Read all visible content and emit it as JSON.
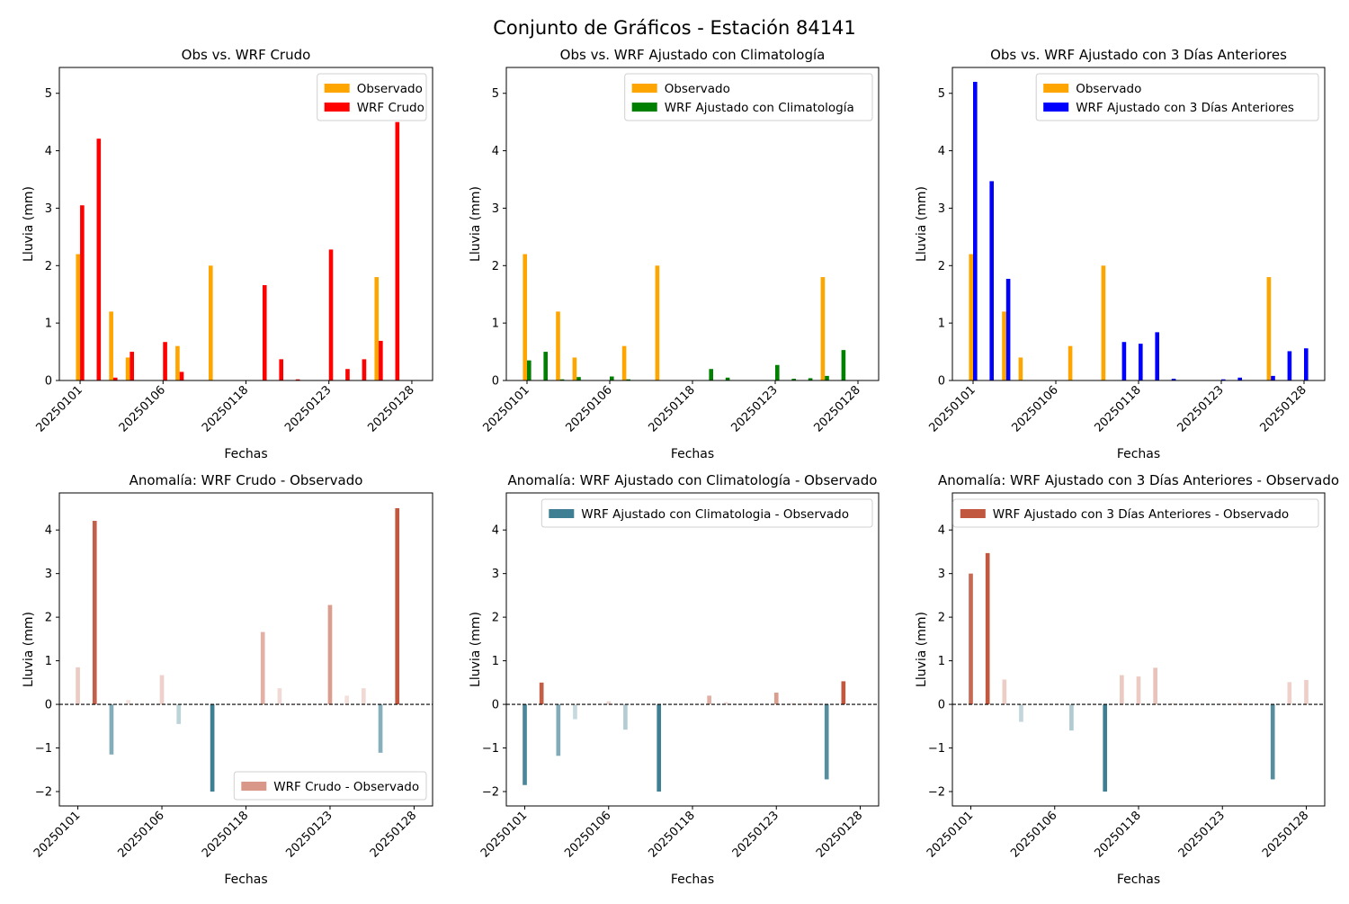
{
  "suptitle": "Conjunto de Gráficos - Estación 84141",
  "colors": {
    "observado": "#ffa500",
    "wrf_crudo": "#ff0000",
    "wrf_clim": "#008000",
    "wrf_3d": "#0000ff",
    "anomaly_positive": "#c0573e",
    "anomaly_negative": "#3f7f93"
  },
  "chart_data": [
    {
      "type": "bar",
      "title": "Obs vs. WRF Crudo",
      "xlabel": "Fechas",
      "ylabel": "Lluvia (mm)",
      "x": [
        0,
        1,
        2,
        3,
        5,
        6,
        8,
        11,
        12,
        13,
        15,
        16,
        17,
        18,
        19,
        20
      ],
      "xticks": [
        0,
        5,
        10,
        15,
        20
      ],
      "xticklabels": [
        "20250101",
        "20250106",
        "20250118",
        "20250123",
        "20250128"
      ],
      "xlim": [
        -1.25,
        21.25
      ],
      "ylim": [
        0,
        5.45
      ],
      "yticks": [
        0,
        1,
        2,
        3,
        4,
        5
      ],
      "legend": "top-right",
      "series": [
        {
          "name": "Observado",
          "color": "#ffa500",
          "values": [
            2.2,
            0.0,
            1.2,
            0.4,
            0.0,
            0.6,
            2.0,
            0.0,
            0.0,
            0.0,
            0.0,
            0.0,
            0.0,
            1.8,
            0.0,
            0.0
          ]
        },
        {
          "name": "WRF Crudo",
          "color": "#ff0000",
          "values": [
            3.05,
            4.21,
            0.05,
            0.5,
            0.67,
            0.15,
            0.0,
            1.66,
            0.37,
            0.02,
            2.28,
            0.2,
            0.37,
            0.69,
            4.5,
            0.0
          ]
        }
      ]
    },
    {
      "type": "bar",
      "title": "Obs vs. WRF Ajustado con Climatología",
      "xlabel": "Fechas",
      "ylabel": "Lluvia (mm)",
      "x": [
        0,
        1,
        2,
        3,
        5,
        6,
        8,
        11,
        12,
        13,
        15,
        16,
        17,
        18,
        19,
        20
      ],
      "xticks": [
        0,
        5,
        10,
        15,
        20
      ],
      "xticklabels": [
        "20250101",
        "20250106",
        "20250118",
        "20250123",
        "20250128"
      ],
      "xlim": [
        -1.25,
        21.25
      ],
      "ylim": [
        0,
        5.45
      ],
      "yticks": [
        0,
        1,
        2,
        3,
        4,
        5
      ],
      "legend": "top-right",
      "series": [
        {
          "name": "Observado",
          "color": "#ffa500",
          "values": [
            2.2,
            0.0,
            1.2,
            0.4,
            0.0,
            0.6,
            2.0,
            0.0,
            0.0,
            0.0,
            0.0,
            0.0,
            0.0,
            1.8,
            0.0,
            0.0
          ]
        },
        {
          "name": "WRF Ajustado con Climatología",
          "color": "#008000",
          "values": [
            0.35,
            0.5,
            0.02,
            0.06,
            0.07,
            0.02,
            0.0,
            0.2,
            0.05,
            0.0,
            0.27,
            0.03,
            0.04,
            0.08,
            0.53,
            0.0
          ]
        }
      ]
    },
    {
      "type": "bar",
      "title": "Obs vs. WRF Ajustado con 3 Días Anteriores",
      "xlabel": "Fechas",
      "ylabel": "Lluvia (mm)",
      "x": [
        0,
        1,
        2,
        3,
        6,
        8,
        9,
        10,
        11,
        12,
        15,
        16,
        17,
        18,
        19,
        20
      ],
      "xticks": [
        0,
        5,
        10,
        15,
        20
      ],
      "xticklabels": [
        "20250101",
        "20250106",
        "20250118",
        "20250123",
        "20250128"
      ],
      "xlim": [
        -1.25,
        21.25
      ],
      "ylim": [
        0,
        5.45
      ],
      "yticks": [
        0,
        1,
        2,
        3,
        4,
        5
      ],
      "legend": "top-right",
      "series": [
        {
          "name": "Observado",
          "color": "#ffa500",
          "values": [
            2.2,
            0.0,
            1.2,
            0.4,
            0.6,
            2.0,
            0.0,
            0.0,
            0.0,
            0.0,
            0.0,
            0.0,
            0.0,
            1.8,
            0.0,
            0.0
          ]
        },
        {
          "name": "WRF Ajustado con 3 Días Anteriores",
          "color": "#0000ff",
          "values": [
            5.2,
            3.47,
            1.77,
            0.0,
            0.0,
            0.0,
            0.67,
            0.64,
            0.84,
            0.03,
            0.02,
            0.05,
            0.0,
            0.08,
            0.51,
            0.56
          ]
        }
      ]
    },
    {
      "type": "bar",
      "title": "Anomalía: WRF Crudo - Observado",
      "xlabel": "Fechas",
      "ylabel": "Lluvia (mm)",
      "x": [
        0,
        1,
        2,
        3,
        5,
        6,
        8,
        11,
        12,
        13,
        15,
        16,
        17,
        18,
        19,
        20
      ],
      "xticks": [
        0,
        5,
        10,
        15,
        20
      ],
      "xticklabels": [
        "20250101",
        "20250106",
        "20250118",
        "20250123",
        "20250128"
      ],
      "xlim": [
        -1.1,
        21.1
      ],
      "ylim": [
        -2.33,
        4.85
      ],
      "yticks": [
        -2,
        -1,
        0,
        1,
        2,
        3,
        4
      ],
      "zero_line": true,
      "legend": "bottom-right",
      "series": [
        {
          "name": "WRF Crudo - Observado",
          "values": [
            0.85,
            4.21,
            -1.15,
            0.1,
            0.67,
            -0.45,
            -2.0,
            1.66,
            0.37,
            0.02,
            2.28,
            0.2,
            0.37,
            -1.11,
            4.5,
            0.0
          ]
        }
      ]
    },
    {
      "type": "bar",
      "title": "Anomalía: WRF Ajustado con Climatología - Observado",
      "xlabel": "Fechas",
      "ylabel": "Lluvia (mm)",
      "x": [
        0,
        1,
        2,
        3,
        5,
        6,
        8,
        11,
        12,
        13,
        15,
        16,
        17,
        18,
        19,
        20
      ],
      "xticks": [
        0,
        5,
        10,
        15,
        20
      ],
      "xticklabels": [
        "20250101",
        "20250106",
        "20250118",
        "20250123",
        "20250128"
      ],
      "xlim": [
        -1.1,
        21.1
      ],
      "ylim": [
        -2.33,
        4.85
      ],
      "yticks": [
        -2,
        -1,
        0,
        1,
        2,
        3,
        4
      ],
      "zero_line": true,
      "legend": "top-right",
      "series": [
        {
          "name": "WRF Ajustado con Climatologia - Observado",
          "values": [
            -1.85,
            0.5,
            -1.18,
            -0.34,
            0.07,
            -0.58,
            -2.0,
            0.2,
            0.05,
            0.0,
            0.27,
            0.03,
            0.04,
            -1.72,
            0.53,
            0.0
          ]
        }
      ]
    },
    {
      "type": "bar",
      "title": "Anomalía: WRF Ajustado con 3 Días Anteriores - Observado",
      "xlabel": "Fechas",
      "ylabel": "Lluvia (mm)",
      "x": [
        0,
        1,
        2,
        3,
        6,
        8,
        9,
        10,
        11,
        12,
        15,
        16,
        17,
        18,
        19,
        20
      ],
      "xticks": [
        0,
        5,
        10,
        15,
        20
      ],
      "xticklabels": [
        "20250101",
        "20250106",
        "20250118",
        "20250123",
        "20250128"
      ],
      "xlim": [
        -1.1,
        21.1
      ],
      "ylim": [
        -2.33,
        4.85
      ],
      "yticks": [
        -2,
        -1,
        0,
        1,
        2,
        3,
        4
      ],
      "zero_line": true,
      "legend": "top-right",
      "series": [
        {
          "name": "WRF Ajustado con 3 Días Anteriores - Observado",
          "values": [
            3.0,
            3.47,
            0.57,
            -0.4,
            -0.6,
            -2.0,
            0.67,
            0.64,
            0.84,
            0.03,
            0.02,
            0.05,
            0.0,
            -1.72,
            0.51,
            0.56
          ]
        }
      ]
    }
  ]
}
